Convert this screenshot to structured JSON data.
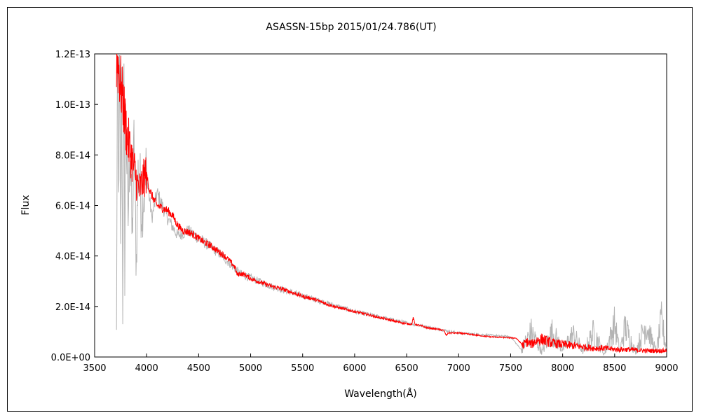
{
  "chart_data": {
    "type": "line",
    "title": "ASASSN-15bp   2015/01/24.786(UT)",
    "xlabel": "Wavelength(Å)",
    "ylabel": "Flux",
    "xlim": [
      3500,
      9000
    ],
    "ylim": [
      0,
      1.2e-13
    ],
    "x_ticks": [
      3500,
      4000,
      4500,
      5000,
      5500,
      6000,
      6500,
      7000,
      7500,
      8000,
      8500,
      9000
    ],
    "x_tick_labels": [
      "3500",
      "4000",
      "4500",
      "5000",
      "5500",
      "6000",
      "6500",
      "7000",
      "7500",
      "8000",
      "8500",
      "9000"
    ],
    "y_ticks": [
      0,
      2e-14,
      4e-14,
      6e-14,
      8e-14,
      1e-13,
      1.2e-13
    ],
    "y_tick_labels": [
      "0.0E+00",
      "2.0E-14",
      "4.0E-14",
      "6.0E-14",
      "8.0E-14",
      "1.0E-13",
      "1.2E-13"
    ],
    "grid": false,
    "legend": "none",
    "series": [
      {
        "color": "#ff0000",
        "x": [
          3710,
          3730,
          3750,
          3770,
          3790,
          3810,
          3830,
          3850,
          3870,
          3890,
          3910,
          3930,
          3950,
          3970,
          3990,
          4010,
          4030,
          4060,
          4100,
          4150,
          4200,
          4250,
          4300,
          4350,
          4400,
          4450,
          4500,
          4550,
          4600,
          4650,
          4700,
          4750,
          4800,
          4850,
          4870,
          4900,
          4950,
          5000,
          5100,
          5200,
          5300,
          5400,
          5500,
          5600,
          5700,
          5800,
          5900,
          6000,
          6100,
          6200,
          6300,
          6400,
          6500,
          6550,
          6563,
          6580,
          6650,
          6700,
          6800,
          6860,
          6880,
          6900,
          7000,
          7100,
          7200,
          7300,
          7400,
          7500,
          7550,
          7600,
          7620,
          7650,
          7700,
          7750,
          7800,
          7900,
          8000,
          8100,
          8200,
          8300,
          8400,
          8500,
          8600,
          8700,
          8800,
          8900,
          9000
        ],
        "y": [
          1.18e-13,
          1.15e-13,
          1.08e-13,
          1.02e-13,
          9.5e-14,
          8.8e-14,
          8.4e-14,
          8e-14,
          7.6e-14,
          7.3e-14,
          6.8e-14,
          6.6e-14,
          6.8e-14,
          7e-14,
          7.3e-14,
          7e-14,
          6.6e-14,
          6.3e-14,
          6e-14,
          5.9e-14,
          5.8e-14,
          5.6e-14,
          5.2e-14,
          5e-14,
          4.95e-14,
          4.85e-14,
          4.7e-14,
          4.55e-14,
          4.45e-14,
          4.3e-14,
          4.15e-14,
          4e-14,
          3.8e-14,
          3.55e-14,
          3.25e-14,
          3.3e-14,
          3.25e-14,
          3.1e-14,
          2.95e-14,
          2.8e-14,
          2.7e-14,
          2.55e-14,
          2.4e-14,
          2.3e-14,
          2.15e-14,
          2e-14,
          1.9e-14,
          1.8e-14,
          1.7e-14,
          1.6e-14,
          1.5e-14,
          1.4e-14,
          1.32e-14,
          1.3e-14,
          1.55e-14,
          1.3e-14,
          1.22e-14,
          1.15e-14,
          1.1e-14,
          1.05e-14,
          8.5e-15,
          9.5e-15,
          9.5e-15,
          9e-15,
          8.5e-15,
          8e-15,
          7.8e-15,
          7.6e-15,
          7.5e-15,
          5.5e-15,
          4.5e-15,
          6e-15,
          5e-15,
          6.5e-15,
          7e-15,
          5.5e-15,
          5e-15,
          4.5e-15,
          4e-15,
          3.5e-15,
          3.5e-15,
          3e-15,
          3e-15,
          2.8e-15,
          2.5e-15,
          2.5e-15,
          2.5e-15
        ]
      },
      {
        "color": "#b4b4b4",
        "x": [
          3710,
          3720,
          3730,
          3740,
          3750,
          3760,
          3770,
          3780,
          3790,
          3800,
          3820,
          3840,
          3860,
          3880,
          3900,
          3920,
          3950,
          4000,
          4050,
          4100,
          4200,
          4300,
          4400,
          4500,
          4700,
          4900,
          5200,
          5600,
          6000,
          6500,
          7000,
          7500,
          7600,
          7700,
          7800,
          7900,
          8000,
          8100,
          8200,
          8300,
          8400,
          8500,
          8550,
          8600,
          8700,
          8800,
          8900,
          8950,
          9000
        ],
        "y": [
          1e-14,
          1.2e-13,
          6e-14,
          1.2e-13,
          4e-14,
          1.15e-13,
          1.5e-14,
          1.15e-13,
          3e-14,
          1.05e-13,
          5e-14,
          9e-14,
          4.5e-14,
          8.5e-14,
          3.5e-14,
          7.5e-14,
          6e-14,
          7.2e-14,
          5.5e-14,
          6.5e-14,
          5.5e-14,
          4.8e-14,
          5e-14,
          4.7e-14,
          4.1e-14,
          3.3e-14,
          2.8e-14,
          2.3e-14,
          1.8e-14,
          1.35e-14,
          9.5e-15,
          8e-15,
          3e-15,
          1e-14,
          2e-15,
          1e-14,
          3e-15,
          9e-15,
          2e-15,
          1e-14,
          1e-15,
          1.3e-14,
          2e-15,
          1.2e-14,
          2e-15,
          1.3e-14,
          2e-15,
          1.4e-14,
          3e-15
        ]
      }
    ]
  }
}
